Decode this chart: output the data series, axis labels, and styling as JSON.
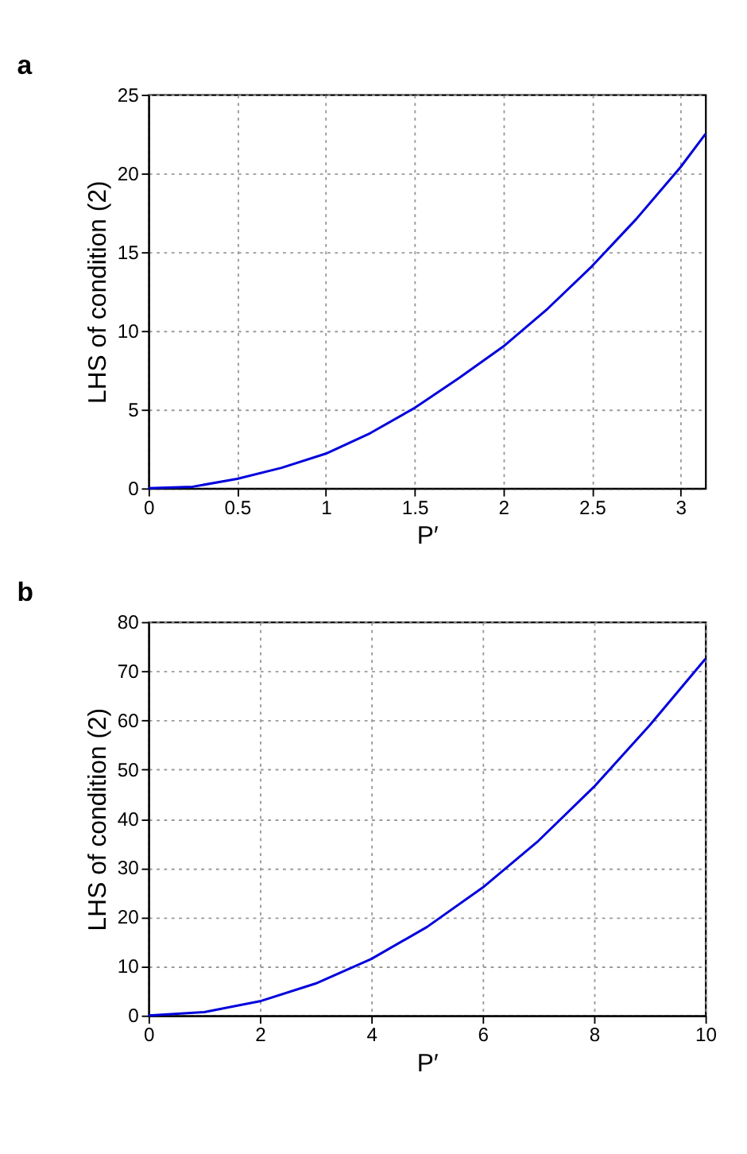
{
  "chart_data": [
    {
      "type": "line",
      "title": "a",
      "xlabel": "P′",
      "ylabel": "LHS of condition (2)",
      "x": [
        0,
        0.25,
        0.5,
        0.75,
        1,
        1.25,
        1.5,
        1.75,
        2,
        2.25,
        2.5,
        2.75,
        3,
        3.14
      ],
      "series": [
        {
          "color": "#0000dd",
          "values": [
            0,
            0.1,
            0.6,
            1.3,
            2.2,
            3.5,
            5.1,
            7.0,
            9.0,
            11.4,
            14.1,
            17.1,
            20.4,
            22.5
          ]
        }
      ],
      "xlim": [
        0,
        3.14
      ],
      "xticks": [
        0,
        0.5,
        1,
        1.5,
        2,
        2.5,
        3
      ],
      "ylim": [
        0,
        25
      ],
      "yticks": [
        0,
        5,
        10,
        15,
        20,
        25
      ],
      "grid": true,
      "line_style": "solid"
    },
    {
      "type": "line",
      "title": "b",
      "xlabel": "P′",
      "ylabel": "LHS of condition (2)",
      "x": [
        0,
        1,
        2,
        3,
        4,
        5,
        6,
        7,
        8,
        9,
        10
      ],
      "series": [
        {
          "color": "#0000dd",
          "values": [
            0,
            0.7,
            2.9,
            6.5,
            11.5,
            18.0,
            26.0,
            35.5,
            46.5,
            59.0,
            72.5
          ]
        }
      ],
      "xlim": [
        0,
        10
      ],
      "xticks": [
        0,
        2,
        4,
        6,
        8,
        10
      ],
      "ylim": [
        0,
        80
      ],
      "yticks": [
        0,
        10,
        20,
        30,
        40,
        50,
        60,
        70,
        80
      ],
      "grid": true,
      "line_style": "solid"
    }
  ]
}
